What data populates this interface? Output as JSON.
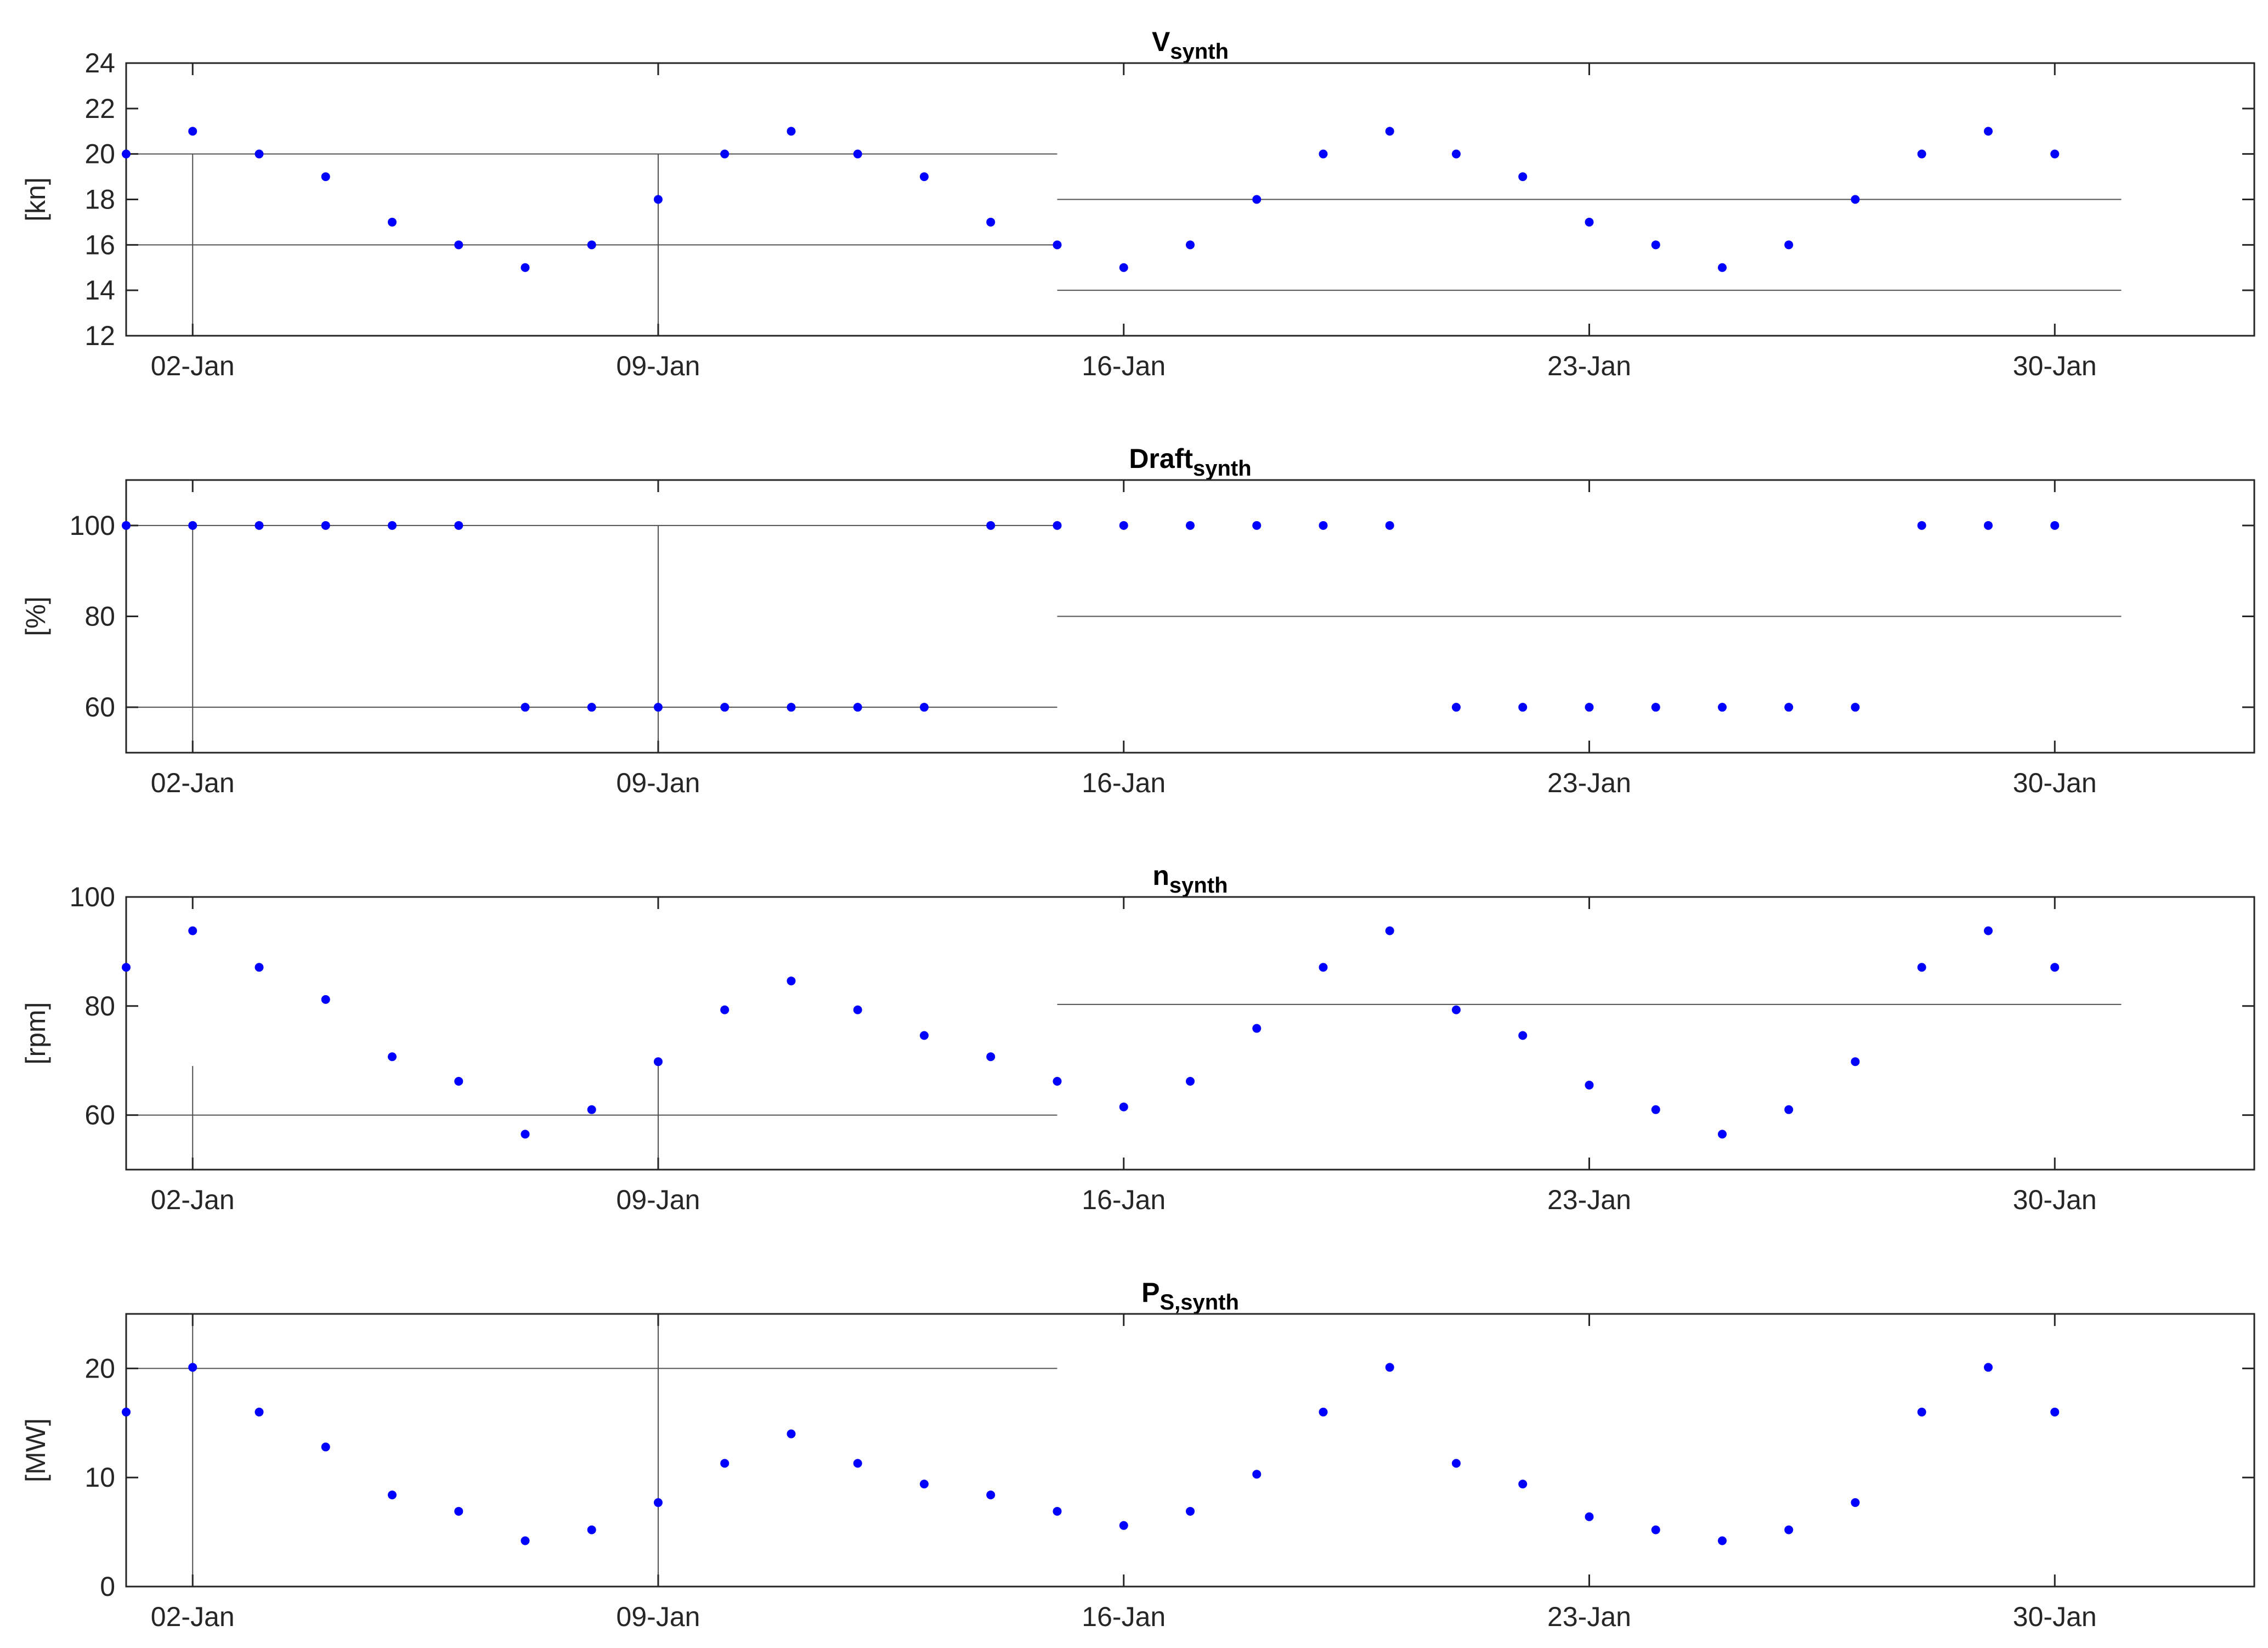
{
  "chart_data": [
    {
      "type": "scatter",
      "title": "V",
      "title_sub": "synth",
      "ylabel": "[kn]",
      "ylim": [
        12,
        24
      ],
      "yticks": [
        12,
        14,
        16,
        18,
        20,
        22,
        24
      ],
      "xlim": [
        0.0,
        32.0
      ],
      "xticks": [
        1,
        8,
        15,
        22,
        29
      ],
      "xtick_labels": [
        "02-Jan",
        "09-Jan",
        "16-Jan",
        "23-Jan",
        "30-Jan"
      ],
      "grid": false,
      "marker_color": "#0000ff",
      "series": [
        {
          "x": [
            "01-Jan",
            "02-Jan",
            "03-Jan",
            "04-Jan",
            "05-Jan",
            "06-Jan",
            "07-Jan",
            "08-Jan",
            "09-Jan",
            "10-Jan",
            "11-Jan",
            "12-Jan",
            "13-Jan",
            "14-Jan",
            "15-Jan",
            "16-Jan",
            "17-Jan",
            "18-Jan",
            "19-Jan",
            "20-Jan",
            "21-Jan",
            "22-Jan",
            "23-Jan",
            "24-Jan",
            "25-Jan",
            "26-Jan",
            "27-Jan",
            "28-Jan",
            "29-Jan",
            "30-Jan"
          ],
          "values": [
            20,
            21,
            20,
            19,
            17,
            16,
            15,
            16,
            18,
            20,
            21,
            20,
            19,
            17,
            16,
            15,
            16,
            18,
            20,
            21,
            20,
            19,
            17,
            16,
            15,
            16,
            18,
            20,
            21,
            20
          ]
        }
      ],
      "reference_lines": [
        {
          "from": "01-Jan",
          "to": "15-Jan",
          "levels": [
            20,
            16
          ],
          "markers": [
            "02-Jan",
            "09-Jan"
          ]
        },
        {
          "from": "15-Jan",
          "to": "31-Jan",
          "levels": [
            18,
            14
          ],
          "markers": []
        }
      ]
    },
    {
      "type": "scatter",
      "title": "Draft",
      "title_sub": "synth",
      "ylabel": "[%]",
      "ylim": [
        50,
        110
      ],
      "yticks": [
        60,
        80,
        100
      ],
      "xlim": [
        0.0,
        32.0
      ],
      "xticks": [
        1,
        8,
        15,
        22,
        29
      ],
      "xtick_labels": [
        "02-Jan",
        "09-Jan",
        "16-Jan",
        "23-Jan",
        "30-Jan"
      ],
      "grid": false,
      "marker_color": "#0000ff",
      "series": [
        {
          "x": [
            "01-Jan",
            "02-Jan",
            "03-Jan",
            "04-Jan",
            "05-Jan",
            "06-Jan",
            "07-Jan",
            "08-Jan",
            "09-Jan",
            "10-Jan",
            "11-Jan",
            "12-Jan",
            "13-Jan",
            "14-Jan",
            "15-Jan",
            "16-Jan",
            "17-Jan",
            "18-Jan",
            "19-Jan",
            "20-Jan",
            "21-Jan",
            "22-Jan",
            "23-Jan",
            "24-Jan",
            "25-Jan",
            "26-Jan",
            "27-Jan",
            "28-Jan",
            "29-Jan",
            "30-Jan"
          ],
          "values": [
            100,
            100,
            100,
            100,
            100,
            100,
            60,
            60,
            60,
            60,
            60,
            60,
            60,
            100,
            100,
            100,
            100,
            100,
            100,
            100,
            60,
            60,
            60,
            60,
            60,
            60,
            60,
            100,
            100,
            100
          ]
        }
      ],
      "reference_lines": [
        {
          "from": "01-Jan",
          "to": "15-Jan",
          "levels": [
            100,
            60
          ],
          "markers": [
            "02-Jan",
            "09-Jan"
          ]
        },
        {
          "from": "15-Jan",
          "to": "31-Jan",
          "levels": [
            80
          ],
          "markers": []
        }
      ]
    },
    {
      "type": "scatter",
      "title": "n",
      "title_sub": "synth",
      "ylabel": "[rpm]",
      "ylim": [
        50,
        100
      ],
      "yticks": [
        60,
        80,
        100
      ],
      "xlim": [
        0.0,
        32.0
      ],
      "xticks": [
        1,
        8,
        15,
        22,
        29
      ],
      "xtick_labels": [
        "02-Jan",
        "09-Jan",
        "16-Jan",
        "23-Jan",
        "30-Jan"
      ],
      "grid": false,
      "marker_color": "#0000ff",
      "series": [
        {
          "x": [
            "01-Jan",
            "02-Jan",
            "03-Jan",
            "04-Jan",
            "05-Jan",
            "06-Jan",
            "07-Jan",
            "08-Jan",
            "09-Jan",
            "10-Jan",
            "11-Jan",
            "12-Jan",
            "13-Jan",
            "14-Jan",
            "15-Jan",
            "16-Jan",
            "17-Jan",
            "18-Jan",
            "19-Jan",
            "20-Jan",
            "21-Jan",
            "22-Jan",
            "23-Jan",
            "24-Jan",
            "25-Jan",
            "26-Jan",
            "27-Jan",
            "28-Jan",
            "29-Jan",
            "30-Jan"
          ],
          "values": [
            87.1,
            93.8,
            87.1,
            81.2,
            70.7,
            66.2,
            56.5,
            61.0,
            69.8,
            79.3,
            84.6,
            79.3,
            74.6,
            70.7,
            66.2,
            61.5,
            66.2,
            75.9,
            87.1,
            93.8,
            79.3,
            74.6,
            65.5,
            61.0,
            56.5,
            61.0,
            69.8,
            87.1,
            93.8,
            87.1
          ]
        }
      ],
      "reference_lines": [
        {
          "from": "01-Jan",
          "to": "15-Jan",
          "levels": [
            60
          ],
          "markers": [
            "02-Jan",
            "09-Jan"
          ]
        },
        {
          "from": "15-Jan",
          "to": "31-Jan",
          "levels": [
            80.3
          ],
          "markers": []
        }
      ]
    },
    {
      "type": "scatter",
      "title": "P",
      "title_sub": "S,synth",
      "ylabel": "[MW]",
      "ylim": [
        0,
        25
      ],
      "yticks": [
        0,
        10,
        20
      ],
      "xlim": [
        0.0,
        32.0
      ],
      "xticks": [
        1,
        8,
        15,
        22,
        29
      ],
      "xtick_labels": [
        "02-Jan",
        "09-Jan",
        "16-Jan",
        "23-Jan",
        "30-Jan"
      ],
      "grid": false,
      "marker_color": "#0000ff",
      "series": [
        {
          "x": [
            "01-Jan",
            "02-Jan",
            "03-Jan",
            "04-Jan",
            "05-Jan",
            "06-Jan",
            "07-Jan",
            "08-Jan",
            "09-Jan",
            "10-Jan",
            "11-Jan",
            "12-Jan",
            "13-Jan",
            "14-Jan",
            "15-Jan",
            "16-Jan",
            "17-Jan",
            "18-Jan",
            "19-Jan",
            "20-Jan",
            "21-Jan",
            "22-Jan",
            "23-Jan",
            "24-Jan",
            "25-Jan",
            "26-Jan",
            "27-Jan",
            "28-Jan",
            "29-Jan",
            "30-Jan"
          ],
          "values": [
            16.0,
            20.1,
            16.0,
            12.8,
            8.4,
            6.9,
            4.2,
            5.2,
            7.7,
            11.3,
            14.0,
            11.3,
            9.4,
            8.4,
            6.9,
            5.6,
            6.9,
            10.3,
            16.0,
            20.1,
            11.3,
            9.4,
            6.4,
            5.2,
            4.2,
            5.2,
            7.7,
            16.0,
            20.1,
            16.0
          ]
        }
      ],
      "reference_lines": [
        {
          "from": "01-Jan",
          "to": "15-Jan",
          "levels": [
            20
          ],
          "markers": [
            "02-Jan",
            "09-Jan"
          ]
        }
      ]
    }
  ]
}
